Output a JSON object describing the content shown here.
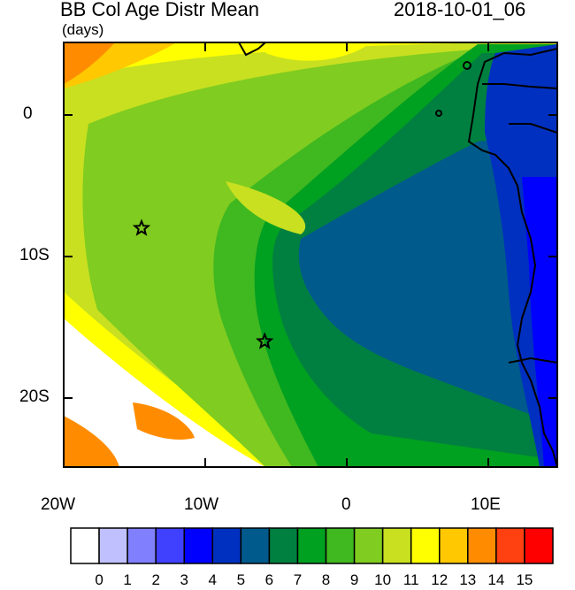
{
  "header": {
    "title": "BB Col Age Distr Mean",
    "units": "(days)",
    "datetime": "2018-10-01_06"
  },
  "axes": {
    "lon_labels": [
      "20W",
      "10W",
      "0",
      "10E"
    ],
    "lat_labels": [
      "0",
      "10S",
      "20S"
    ]
  },
  "colorbar": {
    "levels": [
      "0",
      "1",
      "2",
      "3",
      "4",
      "5",
      "6",
      "7",
      "8",
      "9",
      "10",
      "11",
      "12",
      "13",
      "14",
      "15"
    ],
    "colors": [
      "#ffffff",
      "#c0c0ff",
      "#8080ff",
      "#4040ff",
      "#0000ff",
      "#0030c0",
      "#005a8c",
      "#008040",
      "#00a020",
      "#40b820",
      "#80cc20",
      "#c8e020",
      "#ffff00",
      "#ffc800",
      "#ff8c00",
      "#ff4010",
      "#ff0000"
    ]
  },
  "map": {
    "markers": [
      {
        "name": "star-west",
        "lon": -14.5,
        "lat": -8.0
      },
      {
        "name": "star-south",
        "lon": -5.8,
        "lat": -16.0
      }
    ]
  }
}
